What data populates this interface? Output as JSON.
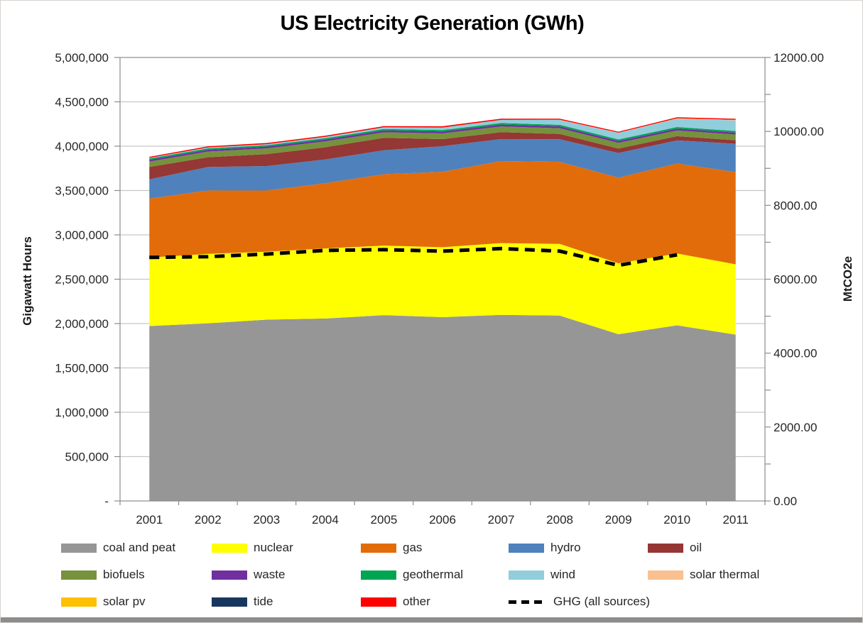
{
  "title": "US Electricity Generation (GWh)",
  "left_axis": {
    "label": "Gigawatt Hours",
    "tick_labels": [
      "5,000,000",
      "4,500,000",
      "4,000,000",
      "3,500,000",
      "3,000,000",
      "2,500,000",
      "2,000,000",
      "1,500,000",
      "1,000,000",
      "500,000",
      "-"
    ],
    "min": 0,
    "max": 5000000,
    "step": 500000
  },
  "right_axis": {
    "label": "MtCO2e",
    "tick_labels": [
      "12000.00",
      "10000.00",
      "8000.00",
      "6000.00",
      "4000.00",
      "2000.00",
      "0.00"
    ],
    "min": 0,
    "max": 12000,
    "label_step": 2000,
    "minor_tick_step": 1000
  },
  "x_axis": {
    "tick_labels": [
      "2001",
      "2002",
      "2003",
      "2004",
      "2005",
      "2006",
      "2007",
      "2008",
      "2009",
      "2010",
      "2011"
    ]
  },
  "chart_data": {
    "type": "area",
    "stacked": true,
    "grid": true,
    "x": [
      2001,
      2002,
      2003,
      2004,
      2005,
      2006,
      2007,
      2008,
      2009,
      2010,
      2011
    ],
    "ylim_left": [
      0,
      5000000
    ],
    "ylim_right": [
      0,
      12000
    ],
    "series": [
      {
        "name": "coal and peat",
        "color": "#969696",
        "values": [
          1972000,
          2003000,
          2044000,
          2057000,
          2095000,
          2072000,
          2098000,
          2090000,
          1880000,
          1980000,
          1875000
        ]
      },
      {
        "name": "nuclear",
        "color": "#FFFF00",
        "values": [
          772000,
          783000,
          766000,
          790000,
          784000,
          789000,
          809000,
          808000,
          800000,
          810000,
          793000
        ]
      },
      {
        "name": "gas",
        "color": "#E36C0A",
        "values": [
          665000,
          715000,
          690000,
          735000,
          805000,
          850000,
          925000,
          925000,
          965000,
          1015000,
          1040000
        ]
      },
      {
        "name": "hydro",
        "color": "#4F81BD",
        "values": [
          217000,
          264000,
          276000,
          268000,
          270000,
          289000,
          248000,
          255000,
          278000,
          260000,
          319000
        ]
      },
      {
        "name": "oil",
        "color": "#943735",
        "values": [
          140000,
          110000,
          135000,
          138000,
          140000,
          80000,
          78000,
          60000,
          50000,
          48000,
          40000
        ]
      },
      {
        "name": "biofuels",
        "color": "#76923C",
        "values": [
          60000,
          64000,
          64000,
          66000,
          62000,
          64000,
          64000,
          64000,
          64000,
          64000,
          64000
        ]
      },
      {
        "name": "waste",
        "color": "#7030A0",
        "values": [
          20000,
          21000,
          21000,
          21000,
          22000,
          22000,
          22000,
          22000,
          22000,
          22000,
          22000
        ]
      },
      {
        "name": "geothermal",
        "color": "#00A551",
        "values": [
          15000,
          15000,
          15000,
          15000,
          16000,
          16000,
          17000,
          17000,
          17000,
          17000,
          18000
        ]
      },
      {
        "name": "wind",
        "color": "#92CDDC",
        "values": [
          7000,
          10000,
          11000,
          14000,
          18000,
          27000,
          35000,
          55000,
          74000,
          95000,
          120000
        ]
      },
      {
        "name": "solar thermal",
        "color": "#FAC090",
        "values": [
          500,
          500,
          500,
          600,
          600,
          600,
          600,
          900,
          900,
          900,
          1800
        ]
      },
      {
        "name": "solar pv",
        "color": "#FFC000",
        "values": [
          10,
          10,
          10,
          10,
          100,
          500,
          600,
          800,
          1200,
          2000,
          4000
        ]
      },
      {
        "name": "tide",
        "color": "#17375E",
        "values": [
          0,
          0,
          0,
          0,
          0,
          0,
          0,
          0,
          0,
          0,
          0
        ]
      },
      {
        "name": "other",
        "color": "#FF0000",
        "values": [
          12000,
          13000,
          13000,
          13000,
          13000,
          14000,
          13000,
          12000,
          11000,
          12000,
          12000
        ]
      }
    ],
    "line_series": {
      "name": "GHG (all sources)",
      "color": "#000000",
      "style": "dashed",
      "axis": "right",
      "x": [
        2001,
        2002,
        2003,
        2004,
        2005,
        2006,
        2007,
        2008,
        2009,
        2010
      ],
      "values": [
        6590,
        6610,
        6680,
        6780,
        6800,
        6760,
        6830,
        6760,
        6375,
        6660
      ]
    }
  },
  "legend": {
    "items": [
      {
        "label": "coal and peat",
        "color": "#969696",
        "type": "area"
      },
      {
        "label": "nuclear",
        "color": "#FFFF00",
        "type": "area"
      },
      {
        "label": "gas",
        "color": "#E36C0A",
        "type": "area"
      },
      {
        "label": "hydro",
        "color": "#4F81BD",
        "type": "area"
      },
      {
        "label": "oil",
        "color": "#943735",
        "type": "area"
      },
      {
        "label": "biofuels",
        "color": "#76923C",
        "type": "area"
      },
      {
        "label": "waste",
        "color": "#7030A0",
        "type": "area"
      },
      {
        "label": "geothermal",
        "color": "#00A551",
        "type": "area"
      },
      {
        "label": "wind",
        "color": "#92CDDC",
        "type": "area"
      },
      {
        "label": "solar thermal",
        "color": "#FAC090",
        "type": "area"
      },
      {
        "label": "solar pv",
        "color": "#FFC000",
        "type": "area"
      },
      {
        "label": "tide",
        "color": "#17375E",
        "type": "area"
      },
      {
        "label": "other",
        "color": "#FF0000",
        "type": "area"
      },
      {
        "label": "GHG (all sources)",
        "color": "#000000",
        "type": "line"
      }
    ]
  },
  "colors": {
    "gridline": "#C6C6C6",
    "axis_line": "#8C8C8C",
    "tick_label": "#262626"
  }
}
